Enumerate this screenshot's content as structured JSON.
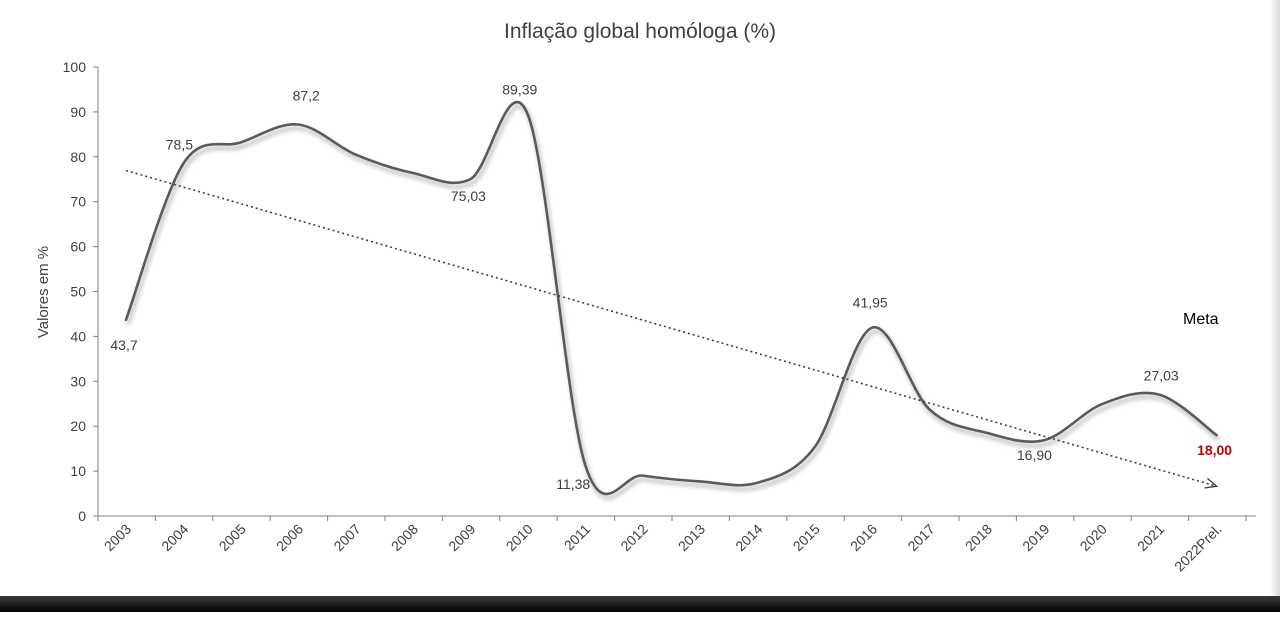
{
  "chart_data": {
    "type": "line",
    "title": "Inflação global homóloga (%)",
    "xlabel": "",
    "ylabel": "Valores em %",
    "categories": [
      "2003",
      "2004",
      "2005",
      "2006",
      "2007",
      "2008",
      "2009",
      "2010",
      "2011",
      "2012",
      "2013",
      "2014",
      "2015",
      "2016",
      "2017",
      "2018",
      "2019",
      "2020",
      "2021",
      "2022Prel."
    ],
    "series": [
      {
        "values": [
          43.7,
          78.5,
          83.2,
          87.2,
          80.5,
          76.4,
          75.03,
          89.39,
          11.38,
          9.0,
          7.7,
          7.4,
          15.4,
          41.95,
          23.7,
          18.5,
          16.9,
          24.9,
          27.03,
          18.0
        ],
        "color": "#5a5a5a"
      }
    ],
    "data_labels": [
      {
        "index": 0,
        "text": "43,7"
      },
      {
        "index": 1,
        "text": "78,5"
      },
      {
        "index": 3,
        "text": "87,2"
      },
      {
        "index": 6,
        "text": "75,03"
      },
      {
        "index": 7,
        "text": "89,39"
      },
      {
        "index": 8,
        "text": "11,38"
      },
      {
        "index": 13,
        "text": "41,95"
      },
      {
        "index": 16,
        "text": "16,90"
      },
      {
        "index": 18,
        "text": "27,03"
      },
      {
        "index": 19,
        "text": "18,00",
        "color": "#c00000",
        "bold": true
      }
    ],
    "trendline": {
      "type": "linear",
      "style": "dotted",
      "arrow": true,
      "color": "#404040"
    },
    "annotation": "Meta",
    "ylim": [
      0,
      100
    ],
    "yticks": [
      0,
      10,
      20,
      30,
      40,
      50,
      60,
      70,
      80,
      90,
      100
    ],
    "grid": false,
    "legend": "none"
  }
}
